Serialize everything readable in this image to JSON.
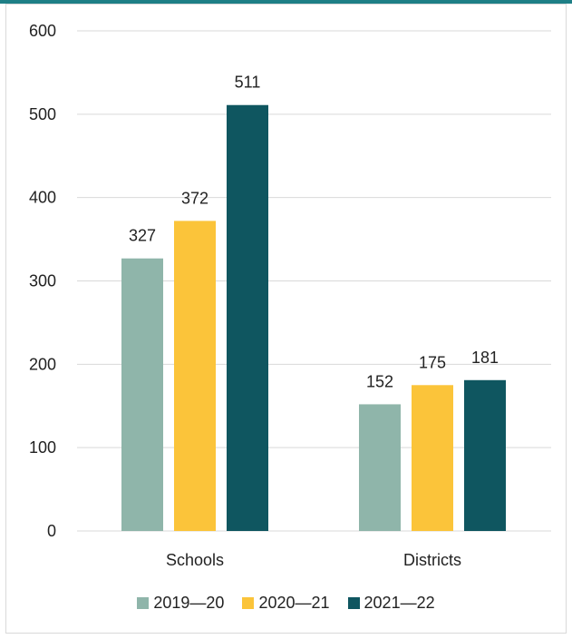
{
  "chart_data": {
    "type": "bar",
    "categories": [
      "Schools",
      "Districts"
    ],
    "series": [
      {
        "name": "2019—20",
        "values": [
          327,
          152
        ],
        "color": "#8fb5aa"
      },
      {
        "name": "2020—21",
        "values": [
          372,
          175
        ],
        "color": "#fbc43a"
      },
      {
        "name": "2021—22",
        "values": [
          511,
          181
        ],
        "color": "#0f5660"
      }
    ],
    "ylim": [
      0,
      600
    ],
    "yticks": [
      "0",
      "100",
      "200",
      "300",
      "400",
      "500",
      "600"
    ],
    "ytick_values": [
      0,
      100,
      200,
      300,
      400,
      500,
      600
    ],
    "grid": true,
    "legend_position": "bottom",
    "title": "",
    "xlabel": "",
    "ylabel": ""
  },
  "colors": {
    "accent_strip": "#1e7f86",
    "gridline": "#d9d9d9"
  }
}
